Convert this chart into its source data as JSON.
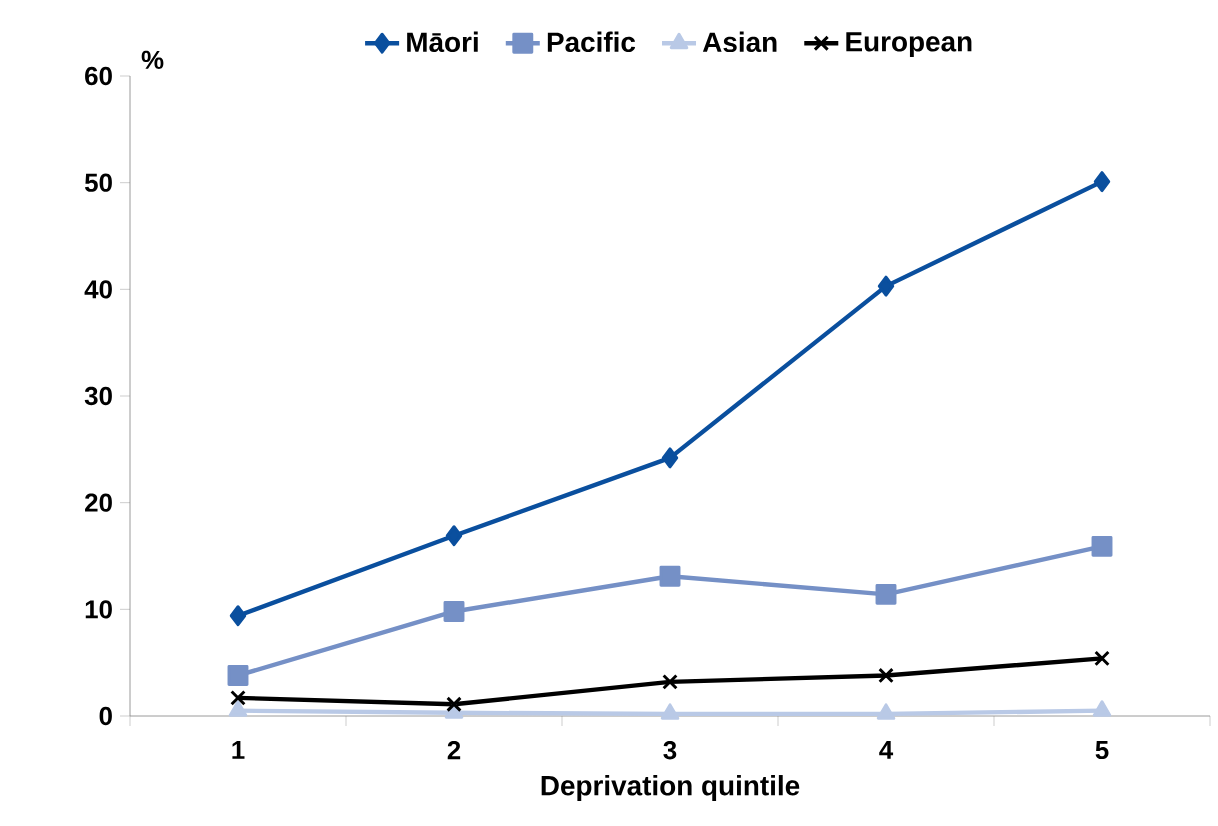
{
  "chart_data": {
    "type": "line",
    "xlabel": "Deprivation quintile",
    "ylabel": "%",
    "categories": [
      "1",
      "2",
      "3",
      "4",
      "5"
    ],
    "series": [
      {
        "name": "Māori",
        "color": "#0a4f9e",
        "marker": "diamond",
        "values": [
          9.4,
          16.9,
          24.2,
          40.3,
          50.1
        ]
      },
      {
        "name": "Pacific",
        "color": "#7590c6",
        "marker": "square",
        "values": [
          3.8,
          9.8,
          13.1,
          11.4,
          15.9
        ]
      },
      {
        "name": "Asian",
        "color": "#b9c9e6",
        "marker": "triangle",
        "values": [
          0.5,
          0.3,
          0.2,
          0.2,
          0.5
        ]
      },
      {
        "name": "European",
        "color": "#000000",
        "marker": "cross",
        "values": [
          1.7,
          1.1,
          3.2,
          3.8,
          5.4
        ]
      }
    ],
    "ylim": [
      0,
      60
    ],
    "yticks": [
      0,
      10,
      20,
      30,
      40,
      50,
      60
    ],
    "grid": false,
    "legend": "top"
  }
}
